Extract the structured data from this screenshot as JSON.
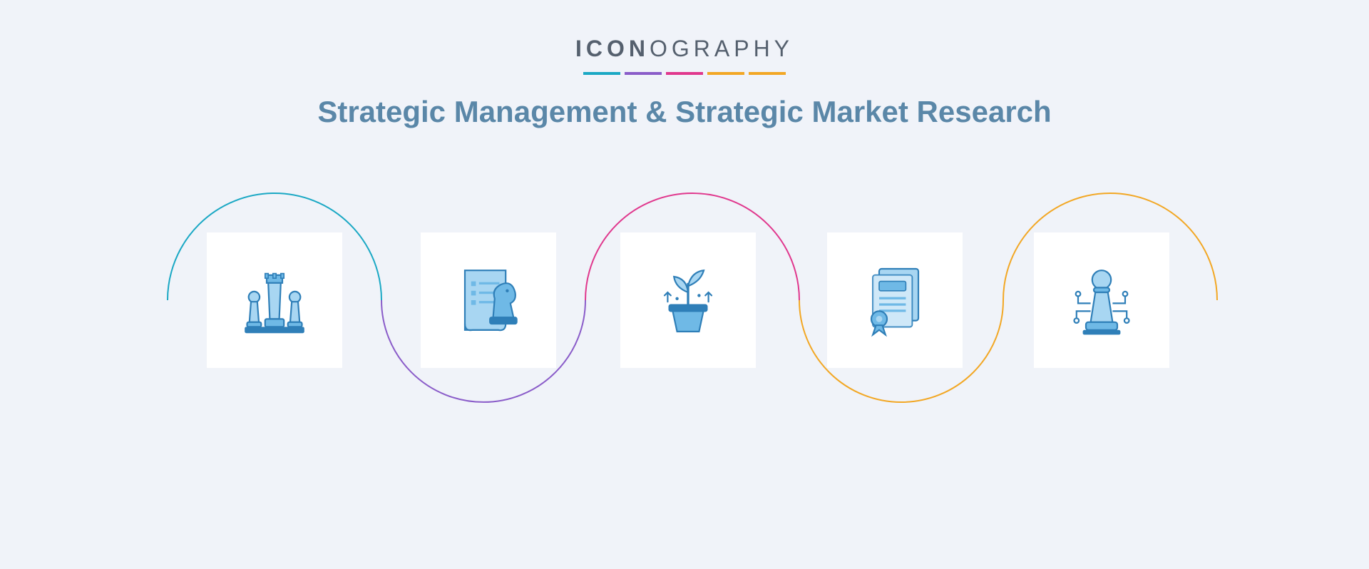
{
  "brand": {
    "prefix": "ICON",
    "suffix": "OGRAPHY"
  },
  "bars": [
    "#1aa8c4",
    "#8a5cc9",
    "#e0378d",
    "#f2a724",
    "#f2a724"
  ],
  "title": "Strategic Management & Strategic Market Research",
  "wave": {
    "colors": [
      "#1aa8c4",
      "#8a5cc9",
      "#e0378d",
      "#f2a724",
      "#f2a724"
    ],
    "stroke_width": 2
  },
  "icon_colors": {
    "light": "#a8d6f2",
    "mid": "#6fb9e6",
    "dark": "#2f7fb8",
    "outline": "#2f7fb8"
  },
  "title_color": "#5a87a8",
  "brand_color": "#55606e",
  "background": "#f0f3f9",
  "card_bg": "#ffffff",
  "icons": [
    {
      "name": "chess-pieces-icon",
      "interactable": false
    },
    {
      "name": "strategy-list-icon",
      "interactable": false
    },
    {
      "name": "plant-growth-icon",
      "interactable": false
    },
    {
      "name": "certificate-icon",
      "interactable": false
    },
    {
      "name": "pawn-circuit-icon",
      "interactable": false
    }
  ]
}
